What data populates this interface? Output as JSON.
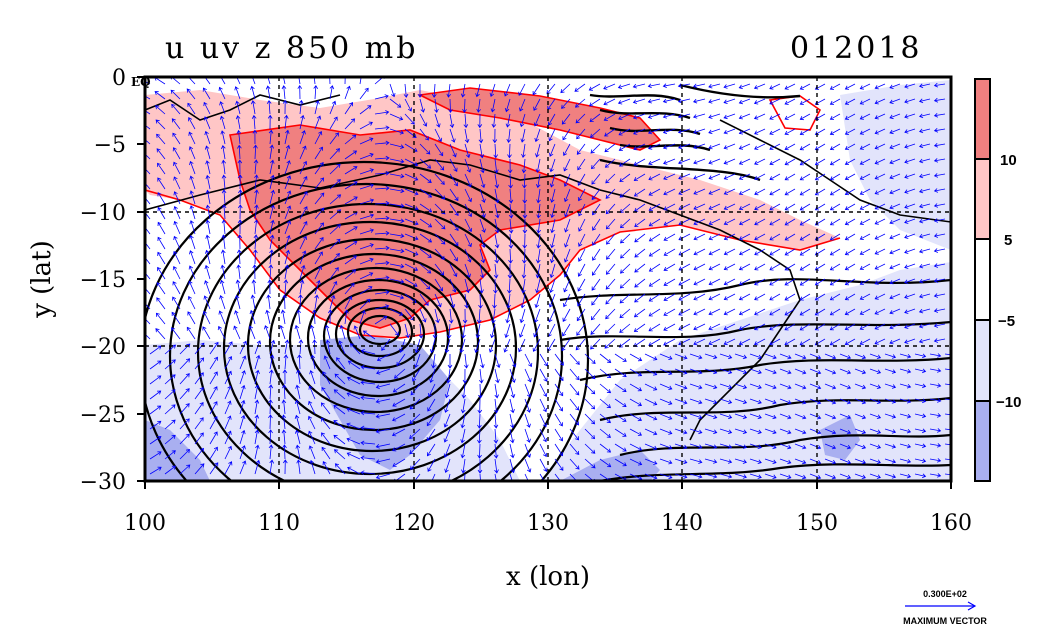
{
  "title": {
    "left": "u uv z 850 mb",
    "right": "012018"
  },
  "axes": {
    "xlabel": "x (lon)",
    "ylabel": "y (lat)",
    "xlim": [
      100,
      160
    ],
    "ylim": [
      -30,
      0
    ],
    "xticks": [
      "100",
      "110",
      "120",
      "130",
      "140",
      "150",
      "160"
    ],
    "yticks": [
      "0",
      "−5",
      "−10",
      "−15",
      "−20",
      "−25",
      "−30"
    ],
    "eq_label": "EQ",
    "grid": "dashed"
  },
  "colorbar": {
    "labels": [
      "10",
      "5",
      "−5",
      "−10"
    ],
    "colors": [
      "#f08080",
      "#ffc6c6",
      "#ffffff",
      "#e2e4fb",
      "#a9aff0"
    ]
  },
  "vector_legend": {
    "value": "0.300E+02",
    "label": "MAXIMUM VECTOR"
  },
  "colors": {
    "positive_contour": "#ff0000",
    "vector": "#0000ff",
    "height_contour": "#000000"
  }
}
